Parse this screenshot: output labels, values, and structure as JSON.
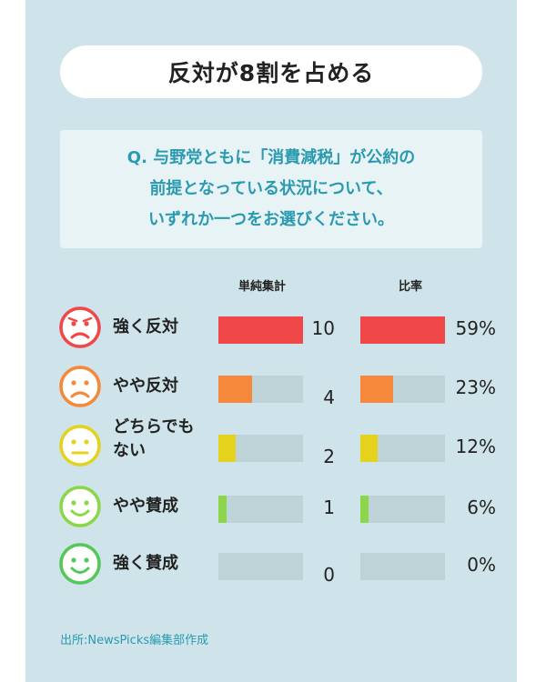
{
  "header": {
    "title": "反対が8割を占める"
  },
  "question": {
    "lines": [
      "Q. 与野党ともに「消費減税」が公約の",
      "前提となっている状況について、",
      "いずれか一つをお選びください。"
    ]
  },
  "columns": {
    "count_label": "単純集計",
    "ratio_label": "比率"
  },
  "chart_data": {
    "type": "bar",
    "orientation": "horizontal",
    "categories": [
      "強く反対",
      "やや反対",
      "どちらでも\nない",
      "やや賛成",
      "強く賛成"
    ],
    "series": [
      {
        "name": "単純集計",
        "values": [
          10,
          4,
          2,
          1,
          0
        ],
        "max": 10
      },
      {
        "name": "比率",
        "values": [
          59,
          23,
          12,
          6,
          0
        ],
        "unit": "%",
        "max": 59
      }
    ],
    "value_labels": {
      "count": [
        "10",
        "4",
        "2",
        "1",
        "0"
      ],
      "ratio": [
        "59%",
        "23%",
        "12%",
        "6%",
        "0%"
      ]
    },
    "colors": [
      "#f04848",
      "#f5883a",
      "#e4d21c",
      "#8cd64a",
      "#52c85a"
    ],
    "face_types": [
      "frown",
      "frown",
      "neutral",
      "smile",
      "smile"
    ]
  },
  "footer": {
    "source": "出所:NewsPicks編集部作成"
  }
}
